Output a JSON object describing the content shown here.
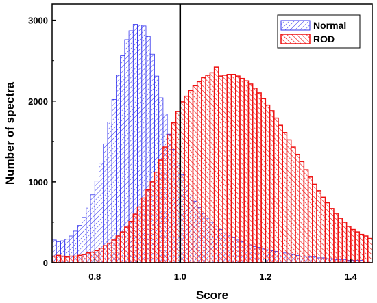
{
  "chart_data": {
    "type": "bar",
    "title": "",
    "xlabel": "Score",
    "ylabel": "Number of spectra",
    "xlim": [
      0.7,
      1.45
    ],
    "ylim": [
      0,
      3200
    ],
    "xticks": [
      "0.8",
      "1.0",
      "1.2",
      "1.4"
    ],
    "xtick_values": [
      0.8,
      1.0,
      1.2,
      1.4
    ],
    "yticks": [
      "0",
      "1000",
      "2000",
      "3000"
    ],
    "ytick_values": [
      0,
      1000,
      2000,
      3000
    ],
    "reference_line_x": 1.0,
    "grid": false,
    "legend_position": "top-right",
    "bin_width": 0.01,
    "bin_start": 0.7,
    "series": [
      {
        "name": "Normal",
        "color": "#3333ee",
        "hatch": "forward-diagonal",
        "values": [
          280,
          260,
          270,
          290,
          330,
          390,
          460,
          560,
          690,
          840,
          1010,
          1230,
          1470,
          1740,
          2020,
          2320,
          2560,
          2760,
          2870,
          2950,
          2940,
          2930,
          2800,
          2580,
          2310,
          2040,
          1840,
          1590,
          1400,
          1230,
          1090,
          960,
          850,
          760,
          680,
          610,
          550,
          500,
          450,
          410,
          370,
          340,
          310,
          280,
          260,
          240,
          220,
          200,
          190,
          170,
          160,
          150,
          140,
          130,
          120,
          110,
          100,
          90,
          80,
          80,
          70,
          70,
          60,
          60,
          50,
          50,
          40,
          40,
          40,
          30,
          30,
          30,
          30,
          20,
          20
        ]
      },
      {
        "name": "ROD",
        "color": "#ee1111",
        "hatch": "back-diagonal",
        "values": [
          80,
          90,
          80,
          70,
          80,
          80,
          90,
          100,
          120,
          130,
          150,
          180,
          210,
          240,
          280,
          330,
          380,
          440,
          510,
          600,
          690,
          800,
          900,
          1000,
          1120,
          1270,
          1430,
          1580,
          1730,
          1870,
          1990,
          2060,
          2130,
          2190,
          2240,
          2290,
          2320,
          2350,
          2420,
          2310,
          2320,
          2330,
          2330,
          2310,
          2280,
          2250,
          2210,
          2160,
          2100,
          2030,
          1950,
          1880,
          1790,
          1700,
          1610,
          1520,
          1430,
          1340,
          1250,
          1150,
          1060,
          970,
          890,
          810,
          740,
          670,
          610,
          550,
          500,
          450,
          410,
          380,
          350,
          330,
          300
        ]
      }
    ]
  }
}
